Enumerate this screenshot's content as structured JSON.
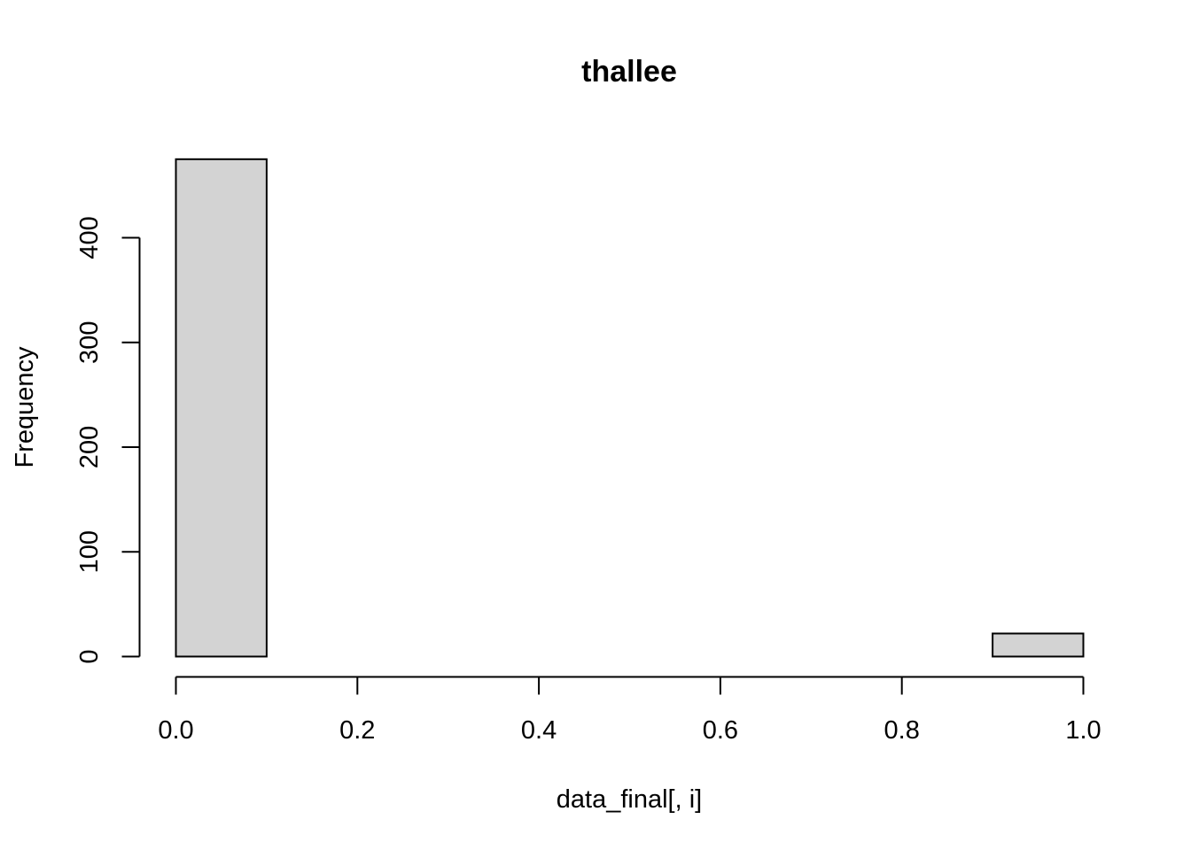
{
  "chart_data": {
    "type": "bar",
    "title": "thallee",
    "xlabel": "data_final[, i]",
    "ylabel": "Frequency",
    "bins": [
      {
        "start": 0.0,
        "end": 0.1,
        "count": 475
      },
      {
        "start": 0.1,
        "end": 0.2,
        "count": 0
      },
      {
        "start": 0.2,
        "end": 0.3,
        "count": 0
      },
      {
        "start": 0.3,
        "end": 0.4,
        "count": 0
      },
      {
        "start": 0.4,
        "end": 0.5,
        "count": 0
      },
      {
        "start": 0.5,
        "end": 0.6,
        "count": 0
      },
      {
        "start": 0.6,
        "end": 0.7,
        "count": 0
      },
      {
        "start": 0.7,
        "end": 0.8,
        "count": 0
      },
      {
        "start": 0.8,
        "end": 0.9,
        "count": 0
      },
      {
        "start": 0.9,
        "end": 1.0,
        "count": 22
      }
    ],
    "xlim": [
      0,
      1
    ],
    "ylim": [
      0,
      475
    ],
    "xticks": [
      0.0,
      0.2,
      0.4,
      0.6,
      0.8,
      1.0
    ],
    "xtick_labels": [
      "0.0",
      "0.2",
      "0.4",
      "0.6",
      "0.8",
      "1.0"
    ],
    "yticks": [
      0,
      100,
      200,
      300,
      400
    ],
    "ytick_labels": [
      "0",
      "100",
      "200",
      "300",
      "400"
    ],
    "bar_fill": "#d3d3d3",
    "grid": false
  }
}
